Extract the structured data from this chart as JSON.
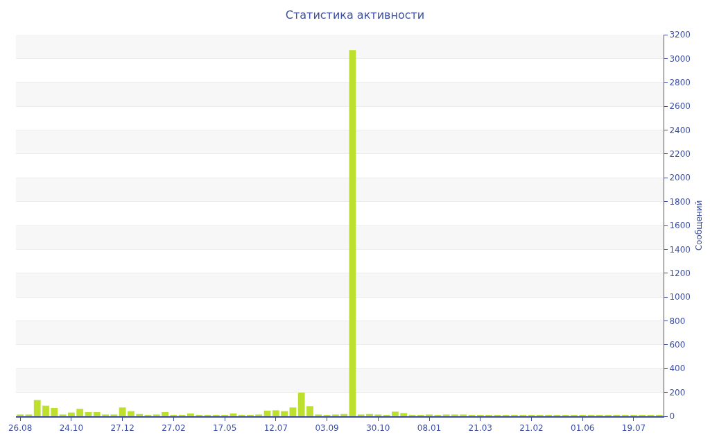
{
  "chart_data": {
    "type": "bar",
    "title": "Статистика активности",
    "ylabel": "Сообщений",
    "categories": [
      "26.08",
      null,
      null,
      null,
      null,
      null,
      "24.10",
      null,
      null,
      null,
      null,
      null,
      "27.12",
      null,
      null,
      null,
      null,
      null,
      "27.02",
      null,
      null,
      null,
      null,
      null,
      "17.05",
      null,
      null,
      null,
      null,
      null,
      "12.07",
      null,
      null,
      null,
      null,
      null,
      "03.09",
      null,
      null,
      null,
      null,
      null,
      "30.10",
      null,
      null,
      null,
      null,
      null,
      "08.01",
      null,
      null,
      null,
      null,
      null,
      "21.03",
      null,
      null,
      null,
      null,
      null,
      "21.02",
      null,
      null,
      null,
      null,
      null,
      "01.06",
      null,
      null,
      null,
      null,
      null,
      "19.07",
      null,
      null,
      null
    ],
    "series": [
      {
        "color": "#bde02e",
        "values": [
          15,
          15,
          136,
          89,
          70,
          15,
          31,
          62,
          35,
          35,
          15,
          15,
          74,
          43,
          19,
          12,
          15,
          35,
          12,
          12,
          23,
          12,
          12,
          12,
          8,
          23,
          12,
          8,
          15,
          47,
          50,
          43,
          74,
          198,
          85,
          15,
          12,
          15,
          19,
          3070,
          15,
          19,
          15,
          8,
          39,
          27,
          8,
          12,
          15,
          8,
          15,
          15,
          15,
          8,
          6,
          6,
          8,
          8,
          8,
          6,
          8,
          8,
          8,
          8,
          6,
          6,
          6,
          12,
          8,
          8,
          8,
          6,
          8,
          6,
          6,
          6
        ]
      }
    ],
    "ylim": [
      0,
      3200
    ],
    "yticks": [
      0,
      200,
      400,
      600,
      800,
      1000,
      1200,
      1400,
      1600,
      1800,
      2000,
      2200,
      2400,
      2600,
      2800,
      3000,
      3200
    ],
    "grid": "y"
  }
}
